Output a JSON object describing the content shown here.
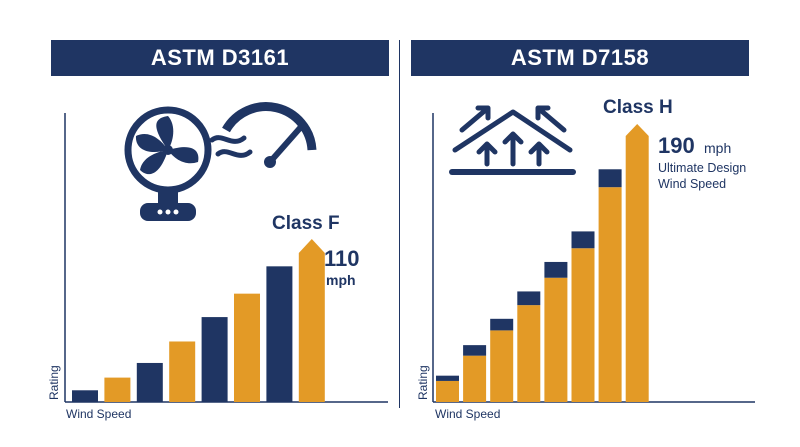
{
  "colors": {
    "navy": "#1f3563",
    "gold": "#e39a26"
  },
  "icons": {
    "left": "fan-with-speed-gauge-icon",
    "right": "roof-wind-uplift-icon"
  },
  "chart_data": [
    {
      "type": "bar",
      "title": "ASTM D3161",
      "xlabel": "Wind Speed",
      "ylabel": "Rating",
      "bar_colors": [
        "navy",
        "gold",
        "navy",
        "gold",
        "navy",
        "gold",
        "navy",
        "gold"
      ],
      "values": [
        12,
        25,
        40,
        62,
        87,
        111,
        139,
        167
      ],
      "ylim": [
        0,
        167
      ],
      "highlight": {
        "class_label": "Class F",
        "value": "110",
        "unit": "mph"
      }
    },
    {
      "type": "bar",
      "title": "ASTM D7158",
      "xlabel": "Wind Speed",
      "ylabel": "Rating",
      "stacked": true,
      "series": [
        {
          "values": [
            5,
            10,
            11,
            13,
            15,
            16,
            17,
            0
          ]
        },
        {
          "values": [
            20,
            44,
            68,
            92,
            118,
            146,
            204,
            264
          ]
        }
      ],
      "ylim": [
        0,
        264
      ],
      "highlight": {
        "class_label": "Class H",
        "value": "190",
        "unit": "mph",
        "note_line1": "Ultimate Design",
        "note_line2": "Wind Speed"
      }
    }
  ]
}
